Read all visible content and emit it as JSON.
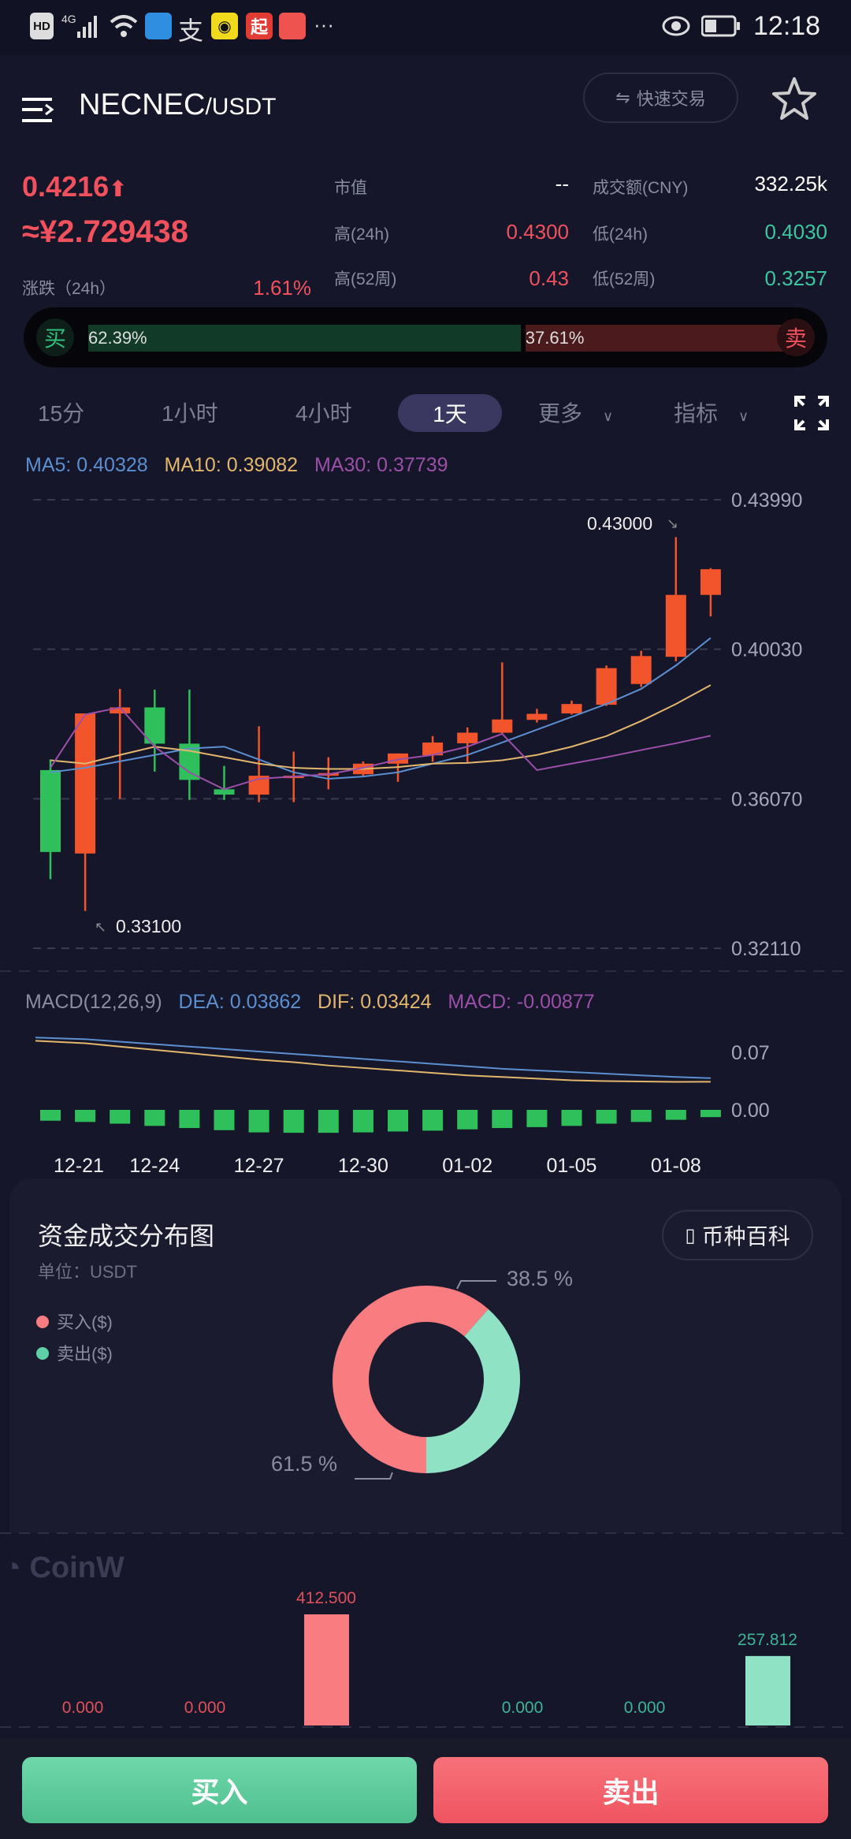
{
  "status_bar": {
    "time": "12:18",
    "left_icons": [
      "HD",
      "4G",
      "signal-icon",
      "wifi-icon"
    ],
    "app_icons": [
      "browser-icon",
      "alipay-icon",
      "app-icon",
      "起",
      "app-icon"
    ],
    "more": "···"
  },
  "header": {
    "pair_base": "NECNEC",
    "pair_quote": "/USDT",
    "quick_trade": "快速交易",
    "quick_trade_icon": "swap-icon",
    "favorite_icon": "star-icon"
  },
  "ticker": {
    "price": "0.4216",
    "price_arrow": "⬆",
    "cny_price": "≈¥2.729438",
    "change_label": "涨跌（24h）",
    "change_value": "1.61%",
    "market_cap_label": "市值",
    "market_cap_value": "--",
    "turnover_label": "成交额(CNY)",
    "turnover_value": "332.25k",
    "high24_label": "高(24h)",
    "high24_value": "0.4300",
    "low24_label": "低(24h)",
    "low24_value": "0.4030",
    "high52_label": "高(52周)",
    "high52_value": "0.43",
    "low52_label": "低(52周)",
    "low52_value": "0.3257"
  },
  "ratio_bar": {
    "buy_label": "买",
    "sell_label": "卖",
    "buy_pct": "62.39%",
    "sell_pct": "37.61%",
    "buy_fraction": 0.6239
  },
  "tabs": [
    {
      "label": "15分"
    },
    {
      "label": "1小时"
    },
    {
      "label": "4小时"
    },
    {
      "label": "1天",
      "active": true
    },
    {
      "label": "更多"
    },
    {
      "label": "指标"
    }
  ],
  "colors": {
    "up": "#f2552c",
    "down": "#2fbf5b",
    "ma5": "#5b8fd0",
    "ma10": "#e2b66d",
    "ma30": "#9c4fa8",
    "buy": "#5fcfa0",
    "sell": "#f25e68",
    "price_red": "#f0515d"
  },
  "ma_legend": {
    "ma5": "MA5: 0.40328",
    "ma10": "MA10: 0.39082",
    "ma30": "MA30: 0.37739"
  },
  "macd_legend": {
    "title": "MACD(12,26,9)",
    "dea": "DEA: 0.03862",
    "dif": "DIF: 0.03424",
    "macd": "MACD: -0.00877"
  },
  "chart_data": [
    {
      "type": "candlestick",
      "y_ticks": [
        "0.43990",
        "0.40030",
        "0.36070",
        "0.32110"
      ],
      "ylim": [
        0.3211,
        0.4399
      ],
      "grid": true,
      "max_label": "0.43000",
      "min_label": "0.33100",
      "x_tick_labels": [
        {
          "label": "12-21",
          "index": 1
        },
        {
          "label": "12-24",
          "index": 3
        },
        {
          "label": "12-27",
          "index": 6
        },
        {
          "label": "12-30",
          "index": 9
        },
        {
          "label": "01-02",
          "index": 12
        },
        {
          "label": "01-05",
          "index": 15
        },
        {
          "label": "01-08",
          "index": 18
        }
      ],
      "ohlc": [
        [
          0.3683,
          0.3711,
          0.3394,
          0.3466
        ],
        [
          0.3462,
          0.3833,
          0.331,
          0.3833
        ],
        [
          0.3833,
          0.3898,
          0.3607,
          0.3849
        ],
        [
          0.3849,
          0.3896,
          0.3679,
          0.3753
        ],
        [
          0.3753,
          0.3896,
          0.3604,
          0.3657
        ],
        [
          0.3632,
          0.3694,
          0.3604,
          0.3618
        ],
        [
          0.3618,
          0.3799,
          0.3598,
          0.3668
        ],
        [
          0.3662,
          0.3732,
          0.3598,
          0.3668
        ],
        [
          0.3668,
          0.3717,
          0.3632,
          0.3675
        ],
        [
          0.3672,
          0.3706,
          0.3668,
          0.37
        ],
        [
          0.37,
          0.3727,
          0.3652,
          0.3727
        ],
        [
          0.3722,
          0.3773,
          0.3705,
          0.3756
        ],
        [
          0.3754,
          0.3796,
          0.3702,
          0.3782
        ],
        [
          0.3782,
          0.3968,
          0.3777,
          0.3817
        ],
        [
          0.3816,
          0.3845,
          0.3809,
          0.3832
        ],
        [
          0.3833,
          0.3867,
          0.383,
          0.3858
        ],
        [
          0.3856,
          0.396,
          0.3853,
          0.3953
        ],
        [
          0.3911,
          0.3999,
          0.3903,
          0.3985
        ],
        [
          0.3983,
          0.43,
          0.3971,
          0.4147
        ],
        [
          0.4147,
          0.4218,
          0.409,
          0.4215
        ]
      ],
      "ma5": [
        0.3677,
        0.3689,
        0.3706,
        0.3723,
        0.374,
        0.3745,
        0.3711,
        0.3677,
        0.366,
        0.3666,
        0.3677,
        0.37,
        0.3723,
        0.3756,
        0.379,
        0.3824,
        0.3858,
        0.3898,
        0.396,
        0.4033
      ],
      "ma10": [
        0.3709,
        0.37,
        0.3723,
        0.3745,
        0.3734,
        0.3717,
        0.37,
        0.3689,
        0.3686,
        0.3686,
        0.3691,
        0.37,
        0.3702,
        0.3709,
        0.3723,
        0.3745,
        0.3773,
        0.3813,
        0.3858,
        0.3908
      ],
      "ma30": [
        0.3689,
        0.383,
        0.3849,
        0.3745,
        0.3677,
        0.3632,
        0.366,
        0.3666,
        0.3672,
        0.3689,
        0.3711,
        0.3723,
        0.3745,
        0.3779,
        0.3683,
        0.37,
        0.3717,
        0.3736,
        0.3754,
        0.3774
      ]
    },
    {
      "type": "macd",
      "y_ticks": [
        "0.07",
        "0.00"
      ],
      "dea": [
        0.088,
        0.086,
        0.083,
        0.08,
        0.077,
        0.074,
        0.071,
        0.068,
        0.065,
        0.062,
        0.059,
        0.056,
        0.053,
        0.05,
        0.048,
        0.046,
        0.044,
        0.042,
        0.04,
        0.0386
      ],
      "dif": [
        0.084,
        0.081,
        0.077,
        0.073,
        0.069,
        0.065,
        0.061,
        0.058,
        0.054,
        0.051,
        0.048,
        0.045,
        0.042,
        0.04,
        0.038,
        0.036,
        0.035,
        0.0345,
        0.034,
        0.0342
      ],
      "macd": [
        -0.0132,
        -0.0147,
        -0.0168,
        -0.0195,
        -0.0221,
        -0.0247,
        -0.0274,
        -0.0279,
        -0.0279,
        -0.0274,
        -0.0263,
        -0.0253,
        -0.0237,
        -0.0221,
        -0.021,
        -0.0195,
        -0.0168,
        -0.0147,
        -0.0121,
        -0.0088
      ]
    },
    {
      "type": "pie",
      "title": "资金成交分布图",
      "subtitle": "单位：USDT",
      "legend": [
        "买入($)",
        "卖出($)"
      ],
      "values": [
        61.5,
        38.5
      ],
      "labels": [
        "61.5 %",
        "38.5 %"
      ]
    },
    {
      "type": "bar",
      "values": [
        0,
        0,
        412.5,
        0,
        0,
        257.812
      ],
      "labels": [
        "0.000",
        "0.000",
        "412.500",
        "0.000",
        "0.000",
        "257.812"
      ],
      "series_side": [
        "buy",
        "buy",
        "buy",
        "sell",
        "sell",
        "sell"
      ]
    }
  ],
  "card": {
    "wiki_button": "币种百科",
    "watermark": "CoinW"
  },
  "actions": {
    "buy": "买入",
    "sell": "卖出"
  }
}
